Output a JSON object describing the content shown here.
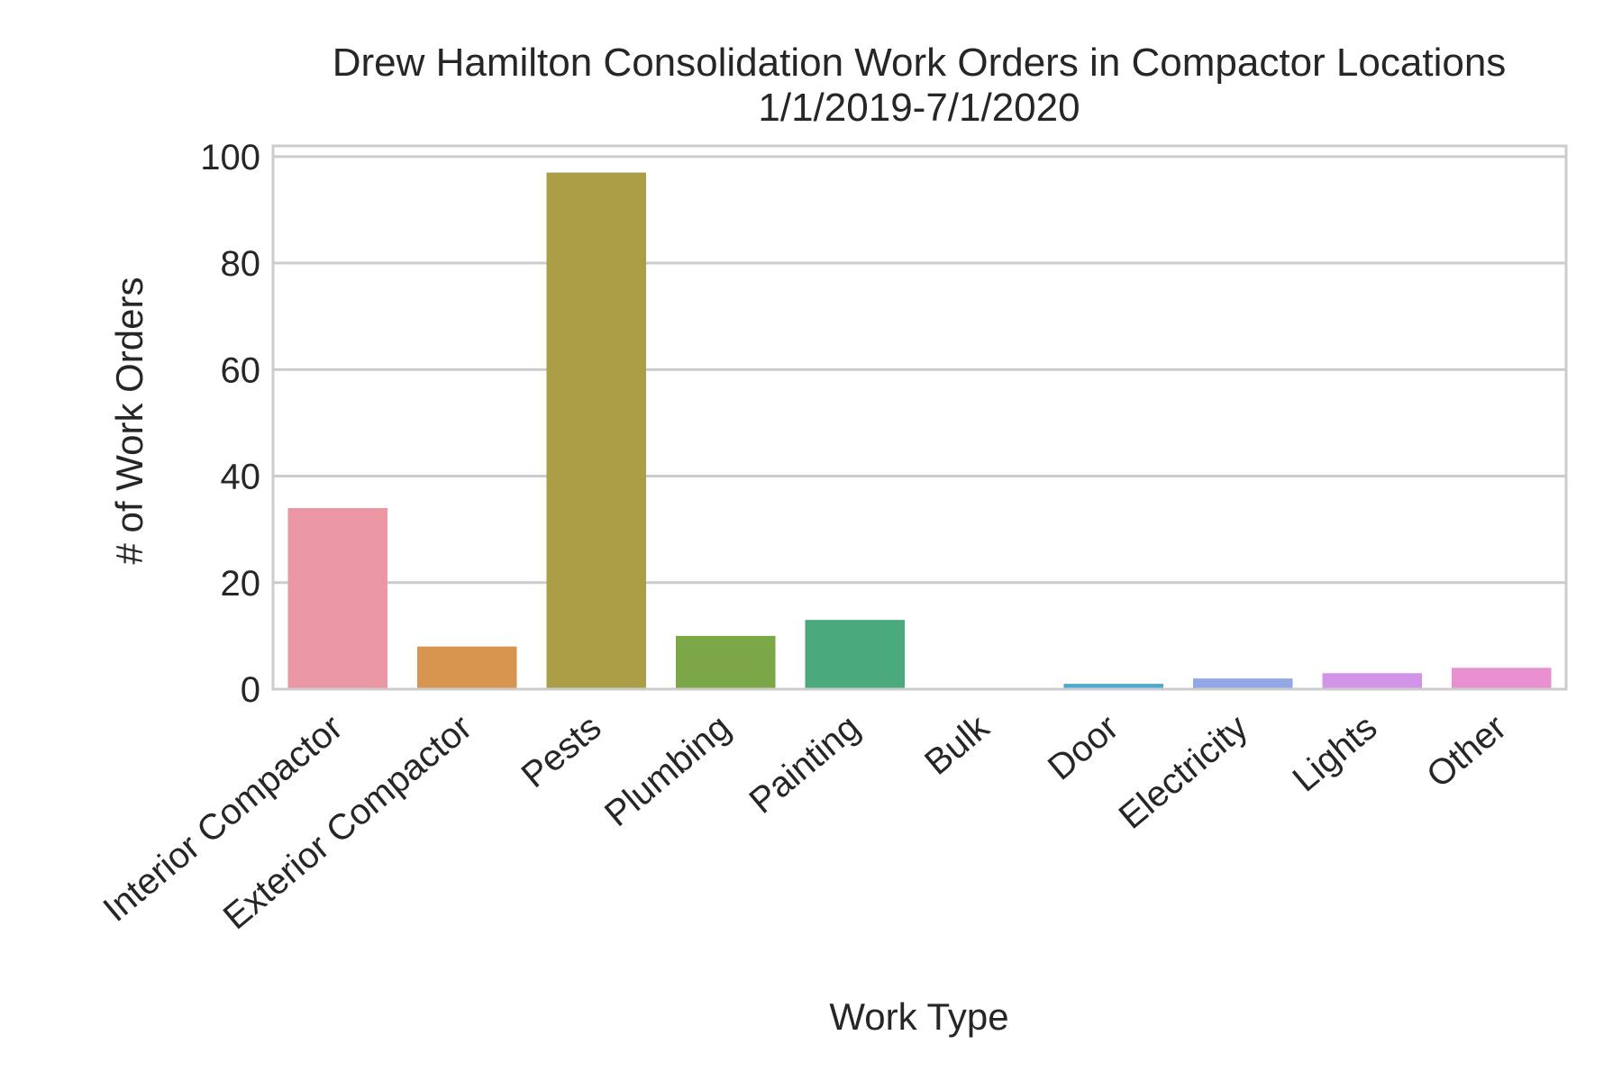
{
  "chart_data": {
    "type": "bar",
    "title": "Drew Hamilton Consolidation Work Orders in Compactor Locations",
    "subtitle": "1/1/2019-7/1/2020",
    "xlabel": "Work Type",
    "ylabel": "# of Work Orders",
    "categories": [
      "Interior Compactor",
      "Exterior Compactor",
      "Pests",
      "Plumbing",
      "Painting",
      "Bulk",
      "Door",
      "Electricity",
      "Lights",
      "Other"
    ],
    "values": [
      34,
      8,
      97,
      10,
      13,
      0,
      1,
      2,
      3,
      4
    ],
    "colors": [
      "#ea96a3",
      "#d8954f",
      "#aa9e47",
      "#7ba747",
      "#4baa7d",
      "#4caaa5",
      "#4ea9d0",
      "#91a7e6",
      "#d194e9",
      "#e88fd0"
    ],
    "ylim": [
      0,
      102
    ],
    "yticks": [
      0,
      20,
      40,
      60,
      80,
      100
    ],
    "grid": true,
    "legend": "none"
  }
}
